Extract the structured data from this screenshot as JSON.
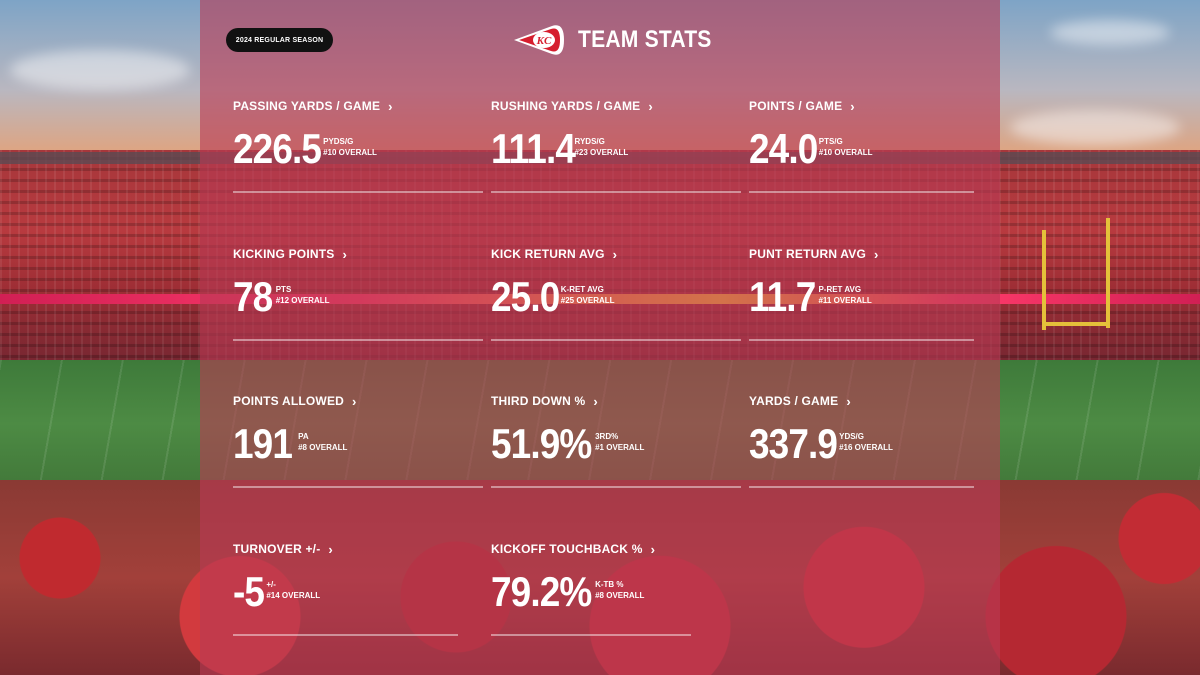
{
  "header": {
    "season": "2024 REGULAR SEASON",
    "title": "TEAM STATS",
    "logo_icon": "chiefs-arrowhead-logo"
  },
  "colors": {
    "overlay": "#b83a54",
    "pill": "#111111",
    "text": "#ffffff"
  },
  "stats": [
    {
      "label": "PASSING YARDS / GAME",
      "value": "226.5",
      "unit": "PYDS/G",
      "rank": "#10 OVERALL"
    },
    {
      "label": "RUSHING YARDS / GAME",
      "value": "111.4",
      "unit": "RYDS/G",
      "rank": "#23 OVERALL"
    },
    {
      "label": "POINTS / GAME",
      "value": "24.0",
      "unit": "PTS/G",
      "rank": "#10 OVERALL"
    },
    {
      "label": "KICKING POINTS",
      "value": "78",
      "unit": "PTS",
      "rank": "#12 OVERALL"
    },
    {
      "label": "KICK RETURN AVG",
      "value": "25.0",
      "unit": "K-RET AVG",
      "rank": "#25 OVERALL"
    },
    {
      "label": "PUNT RETURN AVG",
      "value": "11.7",
      "unit": "P-RET AVG",
      "rank": "#11 OVERALL"
    },
    {
      "label": "POINTS ALLOWED",
      "value": "191",
      "unit": "PA",
      "rank": "#8 OVERALL"
    },
    {
      "label": "THIRD DOWN %",
      "value": "51.9%",
      "unit": "3RD%",
      "rank": "#1 OVERALL"
    },
    {
      "label": "YARDS / GAME",
      "value": "337.9",
      "unit": "YDS/G",
      "rank": "#16 OVERALL"
    },
    {
      "label": "TURNOVER +/-",
      "value": "-5",
      "unit": "+/-",
      "rank": "#14 OVERALL"
    },
    {
      "label": "KICKOFF TOUCHBACK %",
      "value": "79.2%",
      "unit": "K-TB %",
      "rank": "#8 OVERALL"
    }
  ]
}
